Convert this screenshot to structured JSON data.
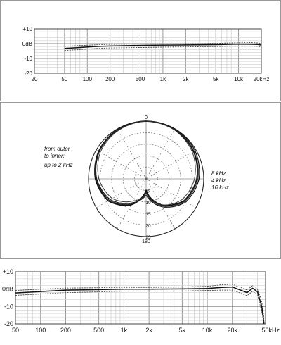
{
  "chart_data": [
    {
      "type": "line",
      "x_scale": "log",
      "xlim": [
        20,
        20000
      ],
      "ylim": [
        -20,
        10
      ],
      "y_ticks": [
        10,
        0,
        -10,
        -20
      ],
      "y_tick_labels": [
        "+10",
        "0dB",
        "-10",
        "-20"
      ],
      "x_ticks": [
        20,
        50,
        100,
        200,
        500,
        1000,
        2000,
        5000,
        10000,
        20000
      ],
      "x_tick_labels": [
        "20",
        "50",
        "100",
        "200",
        "500",
        "1k",
        "2k",
        "5k",
        "10k",
        "20kHz"
      ],
      "grid": true,
      "series": [
        {
          "style": "solid",
          "x": [
            50,
            80,
            120,
            200,
            500,
            1000,
            2000,
            5000,
            10000,
            15000,
            18000,
            20000
          ],
          "y": [
            -3.2,
            -2.6,
            -2.0,
            -1.6,
            -1.2,
            -1.0,
            -0.9,
            -0.7,
            -0.4,
            -0.5,
            -0.6,
            -1.0
          ]
        },
        {
          "style": "dashed",
          "x": [
            50,
            80,
            120,
            200,
            500,
            1000,
            2000,
            5000,
            10000,
            15000,
            18000,
            20000
          ],
          "y": [
            -1.8,
            -1.3,
            -0.9,
            -0.5,
            -0.3,
            -0.2,
            -0.1,
            0.2,
            0.6,
            0.7,
            0.5,
            0.1
          ]
        },
        {
          "style": "dashed",
          "x": [
            50,
            80,
            120,
            200,
            500,
            1000,
            2000,
            5000,
            10000,
            15000,
            18000,
            20000
          ],
          "y": [
            -4.6,
            -4.0,
            -3.4,
            -2.9,
            -2.6,
            -2.4,
            -2.2,
            -2.0,
            -1.6,
            -1.7,
            -1.9,
            -2.4
          ]
        }
      ]
    },
    {
      "type": "polar",
      "angle_labels": [
        "0",
        "180"
      ],
      "radial_ticks": [
        -25,
        -20,
        -15,
        -10,
        -5
      ],
      "radial_tick_labels": [
        "25",
        "20",
        "15",
        "10",
        "5"
      ],
      "notes_left": [
        "from outer",
        "to inner:",
        "up to 2 kHz"
      ],
      "notes_right": [
        "8 kHz",
        "4 kHz",
        "16 kHz"
      ],
      "series": [
        {
          "name": "up to 2 kHz",
          "angles": [
            0,
            30,
            60,
            90,
            120,
            150,
            180,
            210,
            240,
            270,
            300,
            330
          ],
          "values": [
            0,
            -0.3,
            -1.2,
            -3.0,
            -6.0,
            -12.0,
            -20.0,
            -12.0,
            -6.0,
            -3.0,
            -1.2,
            -0.3
          ]
        },
        {
          "name": "8 kHz",
          "angles": [
            0,
            30,
            60,
            90,
            120,
            150,
            180,
            210,
            240,
            270,
            300,
            330
          ],
          "values": [
            0,
            0,
            -0.5,
            -2.0,
            -5.0,
            -11.0,
            -18.0,
            -13.0,
            -7.0,
            -3.5,
            -1.5,
            -0.5
          ]
        },
        {
          "name": "4 kHz",
          "angles": [
            0,
            30,
            60,
            90,
            120,
            150,
            180,
            210,
            240,
            270,
            300,
            330
          ],
          "values": [
            0,
            -0.2,
            -1.0,
            -2.5,
            -5.5,
            -11.5,
            -19.0,
            -12.5,
            -6.5,
            -3.2,
            -1.3,
            -0.4
          ]
        },
        {
          "name": "16 kHz",
          "angles": [
            0,
            30,
            60,
            90,
            120,
            150,
            180,
            210,
            240,
            270,
            300,
            330
          ],
          "values": [
            0,
            -0.5,
            -1.8,
            -4.0,
            -7.0,
            -12.0,
            -18.0,
            -14.0,
            -8.0,
            -4.5,
            -2.0,
            -0.8
          ]
        }
      ]
    },
    {
      "type": "line",
      "x_scale": "log",
      "xlim": [
        50,
        50000
      ],
      "ylim": [
        -20,
        10
      ],
      "y_ticks": [
        10,
        0,
        -10,
        -20
      ],
      "y_tick_labels": [
        "+10",
        "0dB",
        "-10",
        "-20"
      ],
      "x_ticks": [
        50,
        100,
        200,
        500,
        1000,
        2000,
        5000,
        10000,
        20000,
        50000
      ],
      "x_tick_labels": [
        "50",
        "100",
        "200",
        "500",
        "1k",
        "2k",
        "5k",
        "10k",
        "20k",
        "50kHz"
      ],
      "grid": true,
      "series": [
        {
          "style": "solid",
          "x": [
            50,
            100,
            200,
            500,
            1000,
            2000,
            5000,
            10000,
            15000,
            20000,
            30000,
            35000,
            40000,
            45000,
            48000
          ],
          "y": [
            -2.2,
            -1.4,
            -0.6,
            -0.3,
            0.0,
            0.0,
            0.1,
            0.4,
            1.0,
            1.2,
            -2.0,
            0.5,
            -1.5,
            -10.0,
            -20.0
          ]
        },
        {
          "style": "dashed",
          "x": [
            50,
            100,
            200,
            500,
            1000,
            2000,
            5000,
            10000,
            15000,
            20000,
            30000,
            35000,
            40000,
            45000,
            48000
          ],
          "y": [
            -0.8,
            0.0,
            0.6,
            0.8,
            1.0,
            1.0,
            1.2,
            1.6,
            2.5,
            2.8,
            -0.5,
            2.0,
            0.0,
            -7.0,
            -17.0
          ]
        },
        {
          "style": "dashed",
          "x": [
            50,
            100,
            200,
            500,
            1000,
            2000,
            5000,
            10000,
            15000,
            20000,
            30000,
            35000,
            40000,
            45000,
            48000
          ],
          "y": [
            -3.6,
            -2.8,
            -2.0,
            -1.6,
            -1.2,
            -1.2,
            -1.1,
            -0.8,
            -0.6,
            -0.6,
            -3.8,
            -1.2,
            -3.2,
            -13.0,
            -20.0
          ]
        }
      ]
    }
  ]
}
